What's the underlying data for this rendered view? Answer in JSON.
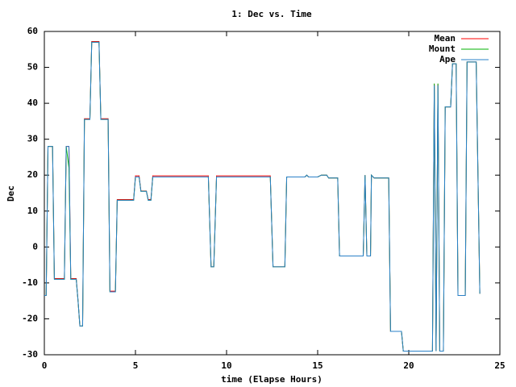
{
  "chart_data": {
    "type": "line",
    "title": "1: Dec vs. Time",
    "x_label": "time (Elapse Hours)",
    "y_label": "Dec",
    "x": [
      0,
      0.1,
      0.2,
      0.45,
      0.55,
      1.1,
      1.2,
      1.35,
      1.45,
      1.75,
      1.85,
      1.95,
      2.1,
      2.2,
      2.5,
      2.6,
      3.0,
      3.1,
      3.5,
      3.6,
      3.9,
      4.0,
      4.9,
      5.0,
      5.2,
      5.3,
      5.6,
      5.7,
      5.85,
      5.95,
      9.0,
      9.15,
      9.3,
      9.45,
      12.4,
      12.55,
      13.2,
      13.3,
      14.3,
      14.4,
      14.5,
      15.0,
      15.2,
      15.5,
      15.6,
      16.1,
      16.2,
      17.5,
      17.6,
      17.7,
      17.9,
      17.95,
      18.1,
      18.9,
      19.0,
      19.6,
      19.7,
      21.3,
      21.4,
      21.5,
      21.6,
      21.7,
      21.9,
      22.0,
      22.3,
      22.4,
      22.6,
      22.7,
      23.1,
      23.2,
      23.7,
      23.9
    ],
    "series": [
      {
        "name": "Mean",
        "color": "#ff0000",
        "values": [
          -13.5,
          -13.5,
          28,
          28,
          -8.8,
          -8.8,
          28,
          28,
          -8.8,
          -8.8,
          -15,
          -22,
          -22,
          35.7,
          35.7,
          57.2,
          57.2,
          35.7,
          35.7,
          -12.3,
          -12.3,
          13.2,
          13.2,
          19.8,
          19.8,
          15.6,
          15.6,
          13.2,
          13.2,
          19.8,
          19.8,
          -5.5,
          -5.5,
          19.8,
          19.8,
          -5.5,
          -5.5,
          19.5,
          19.5,
          20,
          19.5,
          19.5,
          20,
          20,
          19.2,
          19.2,
          -2.5,
          -2.5,
          20,
          -2.5,
          -2.5,
          20,
          19.2,
          19.2,
          -23.5,
          -23.5,
          -29,
          -29,
          45.3,
          -29,
          45.3,
          -29,
          -29,
          39,
          39,
          51,
          51,
          -13.5,
          -13.5,
          51.5,
          51.5,
          -13
        ]
      },
      {
        "name": "Mount",
        "color": "#00b000",
        "values": [
          -13.5,
          -13.5,
          28,
          28,
          -9,
          -9,
          28,
          22,
          -9,
          -9,
          -15,
          -22,
          -22,
          35.5,
          35.5,
          57,
          57,
          35.5,
          35.5,
          -12.5,
          -12.5,
          13,
          13,
          19.5,
          19.5,
          15.5,
          15.5,
          13,
          13,
          19.5,
          19.5,
          -5.5,
          -5.5,
          19.5,
          19.5,
          -5.5,
          -5.5,
          19.5,
          19.5,
          20,
          19.5,
          19.5,
          20,
          20,
          19.2,
          19.2,
          -2.5,
          -2.5,
          20,
          -2.5,
          -2.5,
          20,
          19.2,
          19.2,
          -23.5,
          -23.5,
          -29,
          -29,
          45.5,
          -29,
          45.5,
          -29,
          -29,
          39,
          39,
          51,
          51,
          -13.5,
          -13.5,
          51.5,
          51.5,
          -13
        ]
      },
      {
        "name": "Ape",
        "color": "#2a80c8",
        "values": [
          -13.5,
          -13.5,
          28,
          28,
          -9,
          -9,
          28,
          28,
          -9,
          -9,
          -15,
          -22,
          -22,
          35.5,
          35.5,
          57,
          57,
          35.5,
          35.5,
          -12.5,
          -12.5,
          13,
          13,
          19.5,
          19.5,
          15.5,
          15.5,
          13,
          13,
          19.5,
          19.5,
          -5.5,
          -5.5,
          19.5,
          19.5,
          -5.5,
          -5.5,
          19.5,
          19.5,
          20,
          19.5,
          19.5,
          20,
          20,
          19.2,
          19.2,
          -2.5,
          -2.5,
          20,
          -2.5,
          -2.5,
          20,
          19.2,
          19.2,
          -23.5,
          -23.5,
          -29,
          -29,
          45,
          -29,
          45,
          -29,
          -29,
          39,
          39,
          51,
          51,
          -13.5,
          -13.5,
          51.5,
          51.5,
          -13
        ]
      }
    ],
    "xlim": [
      0,
      25
    ],
    "xticks": [
      0,
      5,
      10,
      15,
      20,
      25
    ],
    "ylim": [
      -30,
      60
    ],
    "yticks": [
      -30,
      -20,
      -10,
      0,
      10,
      20,
      30,
      40,
      50,
      60
    ],
    "legend": "top-right"
  }
}
